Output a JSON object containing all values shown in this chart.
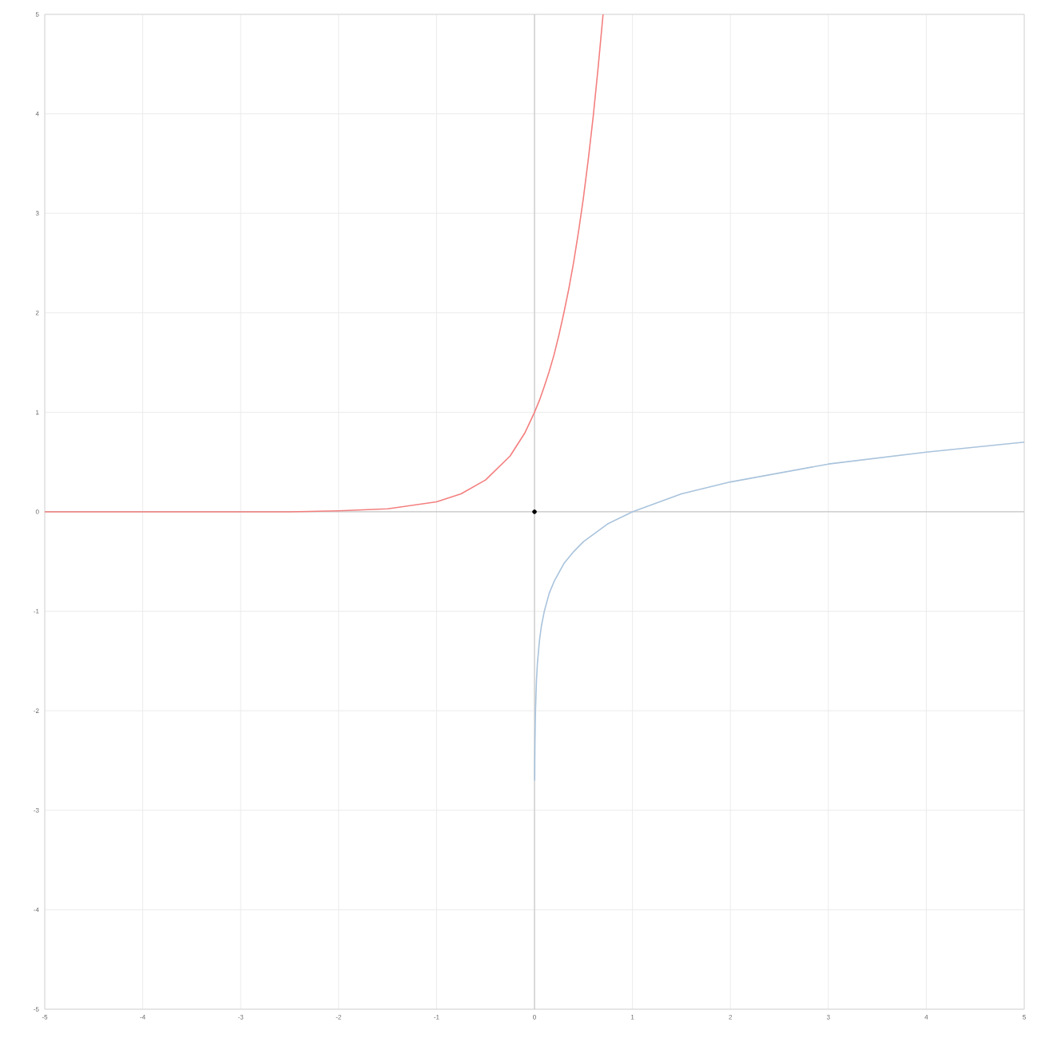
{
  "chart_data": {
    "type": "line",
    "xlim": [
      -5,
      5
    ],
    "ylim": [
      -5,
      5
    ],
    "xticks": [
      -5,
      -4,
      -3,
      -2,
      -1,
      0,
      1,
      2,
      3,
      4,
      5
    ],
    "yticks": [
      -5,
      -4,
      -3,
      -2,
      -1,
      0,
      1,
      2,
      3,
      4,
      5
    ],
    "grid": true,
    "marker": "none",
    "line_style": "solid",
    "series": [
      {
        "color": "#f47f7f",
        "x": [
          -5,
          -4,
          -3,
          -2.5,
          -2,
          -1.5,
          -1,
          -0.75,
          -0.5,
          -0.25,
          -0.1,
          0,
          0.05,
          0.1,
          0.15,
          0.2,
          0.25,
          0.3,
          0.35,
          0.4,
          0.45,
          0.5,
          0.55,
          0.6,
          0.65,
          0.7
        ],
        "values": [
          0,
          0,
          0,
          0,
          0.01,
          0.03,
          0.1,
          0.18,
          0.32,
          0.56,
          0.79,
          1,
          1.12,
          1.26,
          1.41,
          1.58,
          1.78,
          2,
          2.24,
          2.51,
          2.82,
          3.16,
          3.55,
          3.98,
          4.47,
          5
        ]
      },
      {
        "color": "#a9c3dc",
        "x": [
          0.002,
          0.003,
          0.005,
          0.01,
          0.02,
          0.03,
          0.05,
          0.07,
          0.1,
          0.15,
          0.2,
          0.3,
          0.4,
          0.5,
          0.75,
          1,
          1.5,
          2,
          3,
          4,
          5
        ],
        "values": [
          -2.7,
          -2.5,
          -2.3,
          -2,
          -1.7,
          -1.52,
          -1.3,
          -1.15,
          -1,
          -0.82,
          -0.7,
          -0.52,
          -0.4,
          -0.3,
          -0.12,
          0,
          0.18,
          0.3,
          0.48,
          0.6,
          0.7
        ]
      },
      {
        "type": "scatter",
        "marker": "circle",
        "color": "#000000",
        "x": [
          0
        ],
        "values": [
          0
        ]
      }
    ]
  }
}
